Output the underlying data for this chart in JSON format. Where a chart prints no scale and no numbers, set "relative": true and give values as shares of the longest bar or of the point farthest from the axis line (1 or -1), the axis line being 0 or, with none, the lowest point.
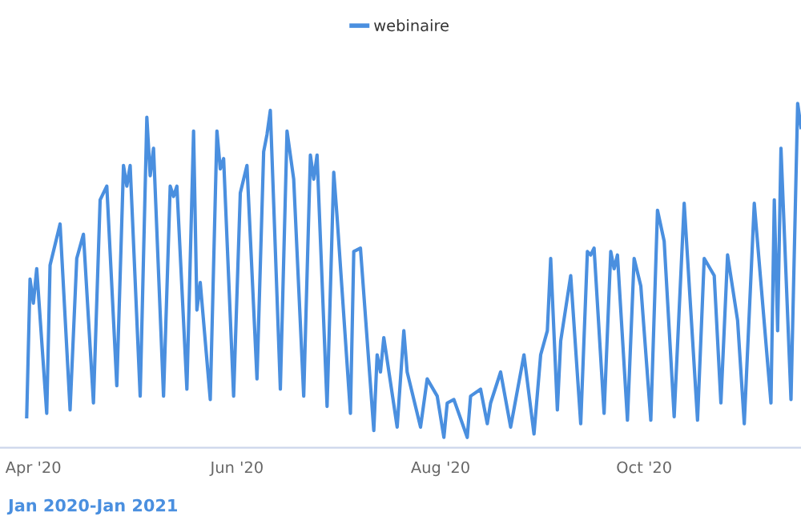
{
  "chart_data": {
    "type": "line",
    "relative": true,
    "legend": "top",
    "grid": false,
    "marker": "none",
    "line_style": "solid",
    "xlim": [
      "2020-03-22",
      "2020-11-17"
    ],
    "xticks": [
      {
        "value": "2020-04-01",
        "label": "Apr '20"
      },
      {
        "value": "2020-06-01",
        "label": "Jun '20"
      },
      {
        "value": "2020-08-01",
        "label": "Aug '20"
      },
      {
        "value": "2020-10-01",
        "label": "Oct '20"
      }
    ],
    "annotations": [
      "Jan 2020-Jan 2021"
    ],
    "x": [
      "2020-03-30",
      "2020-03-31",
      "2020-04-01",
      "2020-04-02",
      "2020-04-05",
      "2020-04-06",
      "2020-04-09",
      "2020-04-12",
      "2020-04-14",
      "2020-04-16",
      "2020-04-19",
      "2020-04-21",
      "2020-04-23",
      "2020-04-26",
      "2020-04-28",
      "2020-04-29",
      "2020-04-30",
      "2020-05-03",
      "2020-05-05",
      "2020-05-06",
      "2020-05-07",
      "2020-05-10",
      "2020-05-12",
      "2020-05-13",
      "2020-05-14",
      "2020-05-17",
      "2020-05-19",
      "2020-05-20",
      "2020-05-21",
      "2020-05-24",
      "2020-05-26",
      "2020-05-27",
      "2020-05-28",
      "2020-05-31",
      "2020-06-02",
      "2020-06-04",
      "2020-06-07",
      "2020-06-09",
      "2020-06-10",
      "2020-06-11",
      "2020-06-14",
      "2020-06-16",
      "2020-06-18",
      "2020-06-21",
      "2020-06-23",
      "2020-06-24",
      "2020-06-25",
      "2020-06-28",
      "2020-06-30",
      "2020-07-01",
      "2020-07-05",
      "2020-07-06",
      "2020-07-08",
      "2020-07-12",
      "2020-07-13",
      "2020-07-14",
      "2020-07-15",
      "2020-07-19",
      "2020-07-21",
      "2020-07-22",
      "2020-07-26",
      "2020-07-28",
      "2020-07-31",
      "2020-08-02",
      "2020-08-03",
      "2020-08-05",
      "2020-08-09",
      "2020-08-10",
      "2020-08-13",
      "2020-08-15",
      "2020-08-16",
      "2020-08-19",
      "2020-08-22",
      "2020-08-26",
      "2020-08-29",
      "2020-08-31",
      "2020-09-02",
      "2020-09-03",
      "2020-09-05",
      "2020-09-06",
      "2020-09-09",
      "2020-09-12",
      "2020-09-14",
      "2020-09-15",
      "2020-09-16",
      "2020-09-19",
      "2020-09-21",
      "2020-09-22",
      "2020-09-23",
      "2020-09-26",
      "2020-09-28",
      "2020-09-30",
      "2020-10-03",
      "2020-10-05",
      "2020-10-07",
      "2020-10-10",
      "2020-10-13",
      "2020-10-17",
      "2020-10-19",
      "2020-10-22",
      "2020-10-24",
      "2020-10-26",
      "2020-10-29",
      "2020-10-31",
      "2020-11-03",
      "2020-11-08",
      "2020-11-09",
      "2020-11-10",
      "2020-11-11",
      "2020-11-14",
      "2020-11-16",
      "2020-11-17"
    ],
    "series": [
      {
        "name": "webinaire",
        "color": "#4a8fdf",
        "values": [
          0.09,
          0.49,
          0.42,
          0.52,
          0.1,
          0.53,
          0.65,
          0.11,
          0.55,
          0.62,
          0.13,
          0.72,
          0.76,
          0.18,
          0.82,
          0.76,
          0.82,
          0.15,
          0.96,
          0.79,
          0.87,
          0.15,
          0.76,
          0.73,
          0.76,
          0.17,
          0.92,
          0.4,
          0.48,
          0.14,
          0.92,
          0.81,
          0.84,
          0.15,
          0.74,
          0.82,
          0.2,
          0.86,
          0.91,
          0.98,
          0.17,
          0.92,
          0.78,
          0.15,
          0.85,
          0.78,
          0.85,
          0.12,
          0.8,
          0.67,
          0.1,
          0.57,
          0.58,
          0.05,
          0.27,
          0.22,
          0.32,
          0.06,
          0.34,
          0.22,
          0.06,
          0.2,
          0.15,
          0.03,
          0.13,
          0.14,
          0.03,
          0.15,
          0.17,
          0.07,
          0.13,
          0.22,
          0.06,
          0.27,
          0.04,
          0.27,
          0.34,
          0.55,
          0.11,
          0.31,
          0.5,
          0.07,
          0.57,
          0.56,
          0.58,
          0.1,
          0.57,
          0.52,
          0.56,
          0.08,
          0.55,
          0.47,
          0.08,
          0.69,
          0.6,
          0.09,
          0.71,
          0.08,
          0.55,
          0.5,
          0.13,
          0.56,
          0.37,
          0.07,
          0.71,
          0.13,
          0.72,
          0.34,
          0.87,
          0.14,
          1.0,
          0.93
        ]
      }
    ]
  }
}
